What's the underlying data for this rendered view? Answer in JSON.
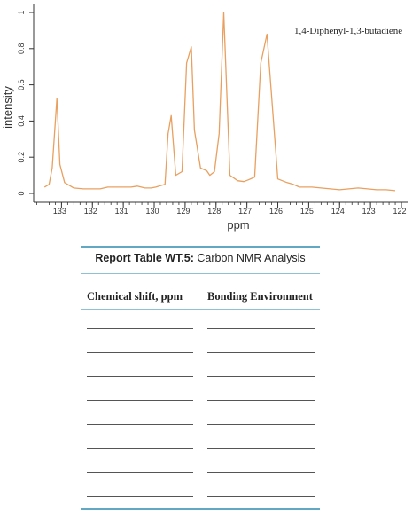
{
  "chart_data": {
    "type": "line",
    "ylabel": "intensity",
    "xlabel": "ppm",
    "annotation": "1,4-Diphenyl-1,3-butadiene",
    "color": "#e8a060",
    "xlim": [
      133.9,
      121.8
    ],
    "ylim": [
      0,
      1
    ],
    "xticks": [
      133,
      132,
      131,
      130,
      129,
      128,
      127,
      126,
      125,
      124,
      123,
      122
    ],
    "yticks": [
      0,
      0.2,
      0.4,
      0.6,
      0.8,
      1
    ],
    "grid": false,
    "x": [
      133.55,
      133.4,
      133.3,
      133.15,
      133.05,
      132.9,
      132.6,
      132.3,
      132.0,
      131.75,
      131.5,
      131.2,
      130.9,
      130.75,
      130.55,
      130.3,
      130.1,
      129.95,
      129.65,
      129.55,
      129.45,
      129.3,
      129.1,
      128.95,
      128.8,
      128.7,
      128.5,
      128.3,
      128.2,
      128.05,
      127.9,
      127.75,
      127.55,
      127.3,
      127.1,
      126.95,
      126.75,
      126.55,
      126.35,
      126.0,
      125.7,
      125.5,
      125.3,
      124.9,
      124.6,
      124.3,
      124.0,
      123.7,
      123.4,
      123.1,
      122.8,
      122.5,
      122.2
    ],
    "y": [
      0.035,
      0.05,
      0.14,
      0.525,
      0.16,
      0.06,
      0.03,
      0.025,
      0.025,
      0.025,
      0.035,
      0.035,
      0.035,
      0.035,
      0.04,
      0.03,
      0.03,
      0.035,
      0.05,
      0.33,
      0.43,
      0.1,
      0.12,
      0.72,
      0.81,
      0.35,
      0.14,
      0.125,
      0.1,
      0.12,
      0.33,
      1.0,
      0.1,
      0.07,
      0.065,
      0.075,
      0.09,
      0.72,
      0.88,
      0.08,
      0.06,
      0.05,
      0.035,
      0.035,
      0.03,
      0.025,
      0.02,
      0.025,
      0.03,
      0.025,
      0.02,
      0.02,
      0.015
    ]
  },
  "report": {
    "title_bold": "Report Table WT.5:",
    "title_rest": "Carbon NMR Analysis",
    "col1": "Chemical shift, ppm",
    "col2": "Bonding Environment"
  }
}
